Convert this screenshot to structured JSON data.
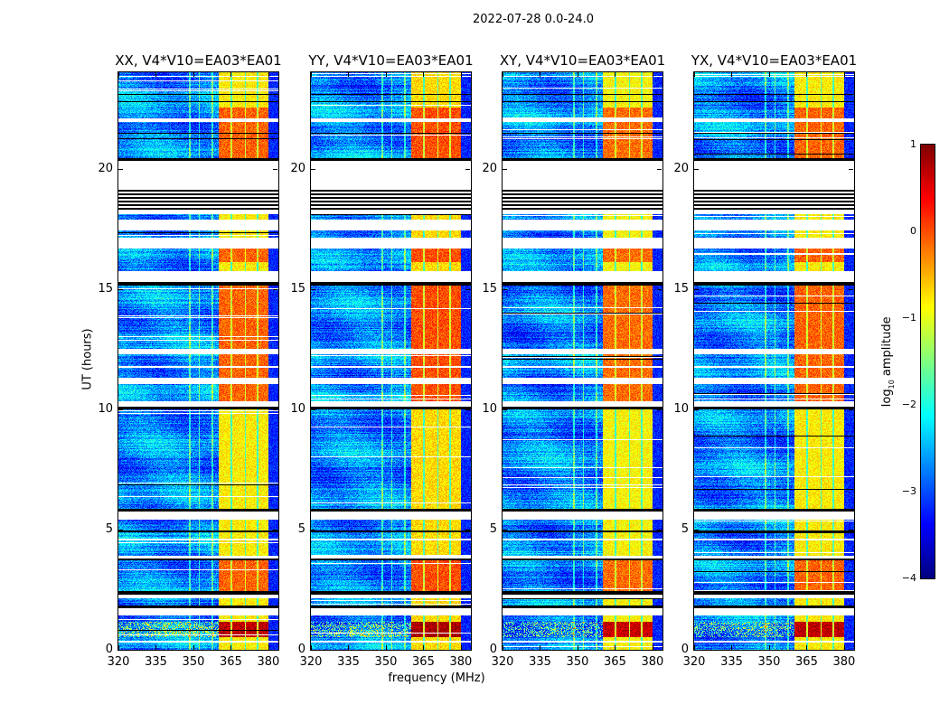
{
  "figure_title": "2022-07-28 0.0-24.0",
  "chart_data": {
    "type": "heatmap",
    "xlabel": "frequency (MHz)",
    "ylabel": "UT (hours)",
    "xlim": [
      320,
      384
    ],
    "ylim": [
      0,
      24
    ],
    "xticks": [
      320,
      335,
      350,
      365,
      380
    ],
    "xtick_labels": [
      "320",
      "335",
      "350",
      "365",
      "380"
    ],
    "yticks": [
      0,
      5,
      10,
      15,
      20
    ],
    "ytick_labels": [
      "0",
      "5",
      "10",
      "15",
      "20"
    ],
    "panels": [
      {
        "title": "XX, V4*V10=EA03*EA01",
        "offset": 0.0
      },
      {
        "title": "YY, V4*V10=EA03*EA01",
        "offset": 0.1
      },
      {
        "title": "XY, V4*V10=EA03*EA01",
        "offset": -0.05
      },
      {
        "title": "YX, V4*V10=EA03*EA01",
        "offset": 0.0
      }
    ],
    "colorbar": {
      "label_prefix": "log",
      "label_sub": "10",
      "label_suffix": " amplitude",
      "range": [
        -4,
        1
      ],
      "colormap": "jet",
      "ticks": [
        1,
        0,
        -1,
        -2,
        -3,
        -4
      ],
      "tick_labels": [
        "1",
        "0",
        "−1",
        "−2",
        "−3",
        "−4"
      ]
    },
    "bright_blocks_mhz": [
      [
        360,
        365
      ],
      [
        365.5,
        370.5
      ],
      [
        371,
        375.5
      ],
      [
        376,
        380
      ]
    ],
    "background_log_amplitude": -2.7,
    "block_log_amplitude": {
      "warm": -0.8,
      "hot": -0.1,
      "vhot": 0.7
    },
    "time_segments_hours": [
      [
        0,
        0.3,
        "warm"
      ],
      [
        0.3,
        0.38,
        "flag"
      ],
      [
        0.38,
        0.53,
        "warm"
      ],
      [
        0.53,
        1.16,
        "vhot"
      ],
      [
        1.16,
        1.43,
        "warm"
      ],
      [
        1.43,
        1.73,
        "flag"
      ],
      [
        1.73,
        1.85,
        "black"
      ],
      [
        1.85,
        2.14,
        "warm"
      ],
      [
        2.14,
        2.3,
        "flag"
      ],
      [
        2.3,
        2.45,
        "black"
      ],
      [
        2.45,
        3.72,
        "hot"
      ],
      [
        3.72,
        3.8,
        "black"
      ],
      [
        3.8,
        3.91,
        "flag"
      ],
      [
        3.91,
        4.54,
        "warm"
      ],
      [
        4.54,
        4.62,
        "flag"
      ],
      [
        4.62,
        4.88,
        "warm"
      ],
      [
        4.88,
        4.95,
        "black"
      ],
      [
        4.95,
        5.41,
        "warm"
      ],
      [
        5.41,
        5.75,
        "flag"
      ],
      [
        5.75,
        5.86,
        "black"
      ],
      [
        5.86,
        10.0,
        "warm"
      ],
      [
        10.0,
        10.1,
        "black"
      ],
      [
        10.1,
        10.33,
        "flag"
      ],
      [
        10.33,
        11.04,
        "hot"
      ],
      [
        11.04,
        11.3,
        "flag"
      ],
      [
        11.3,
        11.72,
        "hot"
      ],
      [
        11.72,
        11.8,
        "flag"
      ],
      [
        11.8,
        12.28,
        "hot"
      ],
      [
        12.28,
        12.51,
        "flag"
      ],
      [
        12.51,
        15.14,
        "hot"
      ],
      [
        15.14,
        15.29,
        "black"
      ],
      [
        15.29,
        15.74,
        "flag"
      ],
      [
        15.74,
        16.11,
        "warm"
      ],
      [
        16.11,
        16.68,
        "hot"
      ],
      [
        16.68,
        17.13,
        "flag"
      ],
      [
        17.13,
        17.43,
        "warm"
      ],
      [
        17.43,
        17.88,
        "flag"
      ],
      [
        17.88,
        18.1,
        "warm"
      ],
      [
        18.1,
        18.29,
        "flag"
      ],
      [
        18.29,
        19.19,
        "stripes"
      ],
      [
        19.19,
        20.32,
        "flag"
      ],
      [
        20.32,
        20.43,
        "black"
      ],
      [
        20.43,
        21.45,
        "hot"
      ],
      [
        21.45,
        21.5,
        "black"
      ],
      [
        21.5,
        21.93,
        "hot"
      ],
      [
        21.93,
        22.08,
        "flag"
      ],
      [
        22.08,
        22.54,
        "hot"
      ],
      [
        22.54,
        22.76,
        "warm"
      ],
      [
        22.76,
        22.8,
        "black"
      ],
      [
        22.8,
        23.06,
        "warm"
      ],
      [
        23.06,
        23.1,
        "black"
      ],
      [
        23.1,
        23.81,
        "warm"
      ],
      [
        23.81,
        23.86,
        "flag"
      ],
      [
        23.86,
        24,
        "warm"
      ]
    ],
    "rfi_lines_mhz": [
      348.5,
      352.3,
      357.5
    ]
  }
}
